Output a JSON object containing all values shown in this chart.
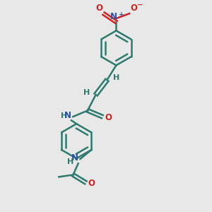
{
  "background_color": "#e8e8e8",
  "bond_color": "#2d7a6e",
  "n_color": "#2a52a0",
  "o_color": "#cc2222",
  "bond_width": 1.8,
  "figsize": [
    3.0,
    3.0
  ],
  "dpi": 100,
  "xlim": [
    0,
    10
  ],
  "ylim": [
    0,
    10
  ]
}
